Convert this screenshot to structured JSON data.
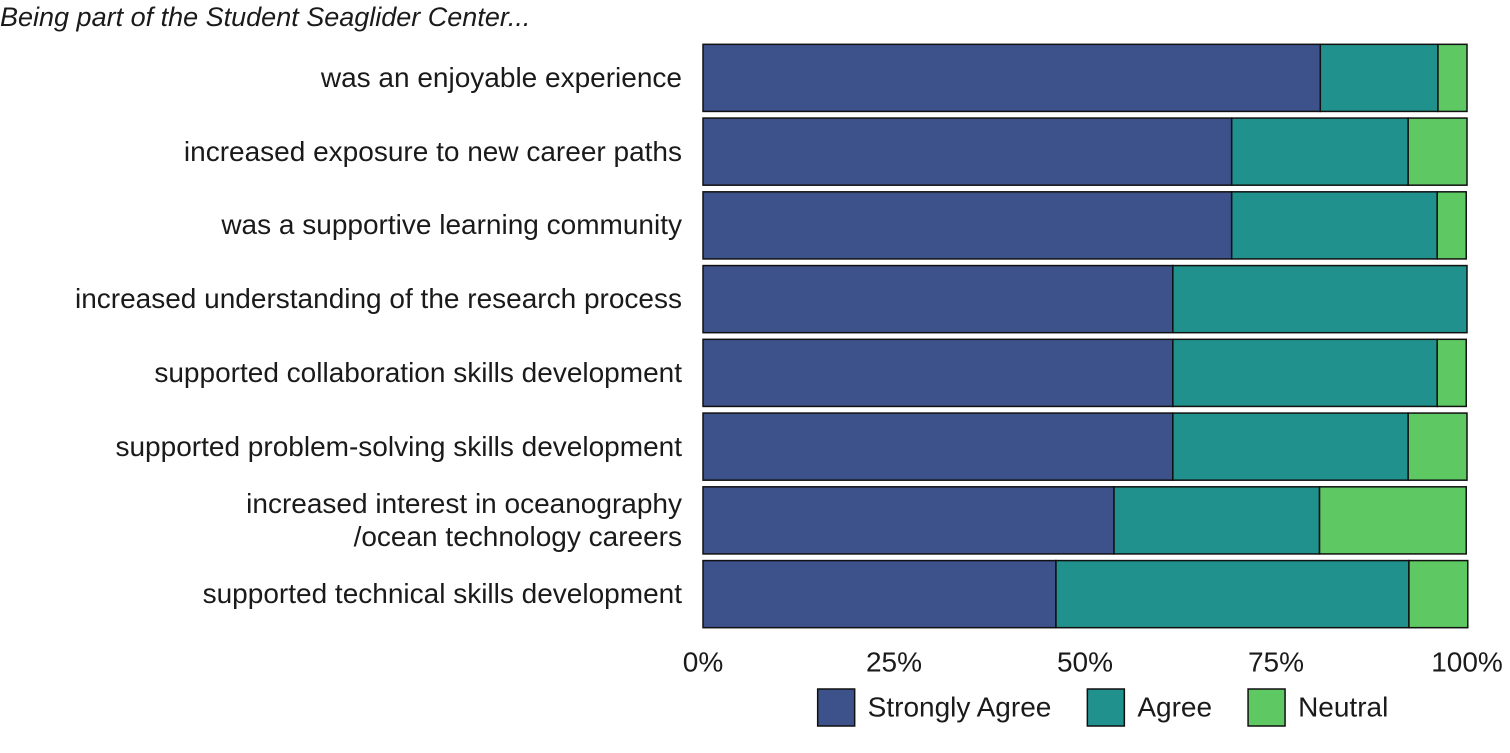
{
  "chart_data": {
    "type": "bar",
    "orientation": "horizontal",
    "stacked": true,
    "title": "Being part of the Student Seaglider Center...",
    "categories": [
      "was an enjoyable experience",
      "increased exposure to new career paths",
      "was a supportive learning community",
      "increased understanding of the research process",
      "supported collaboration skills development",
      "supported problem-solving skills development",
      "increased interest in oceanography\n/ocean technology careers",
      "supported technical skills development"
    ],
    "series": [
      {
        "name": "Strongly Agree",
        "color": "#3d528a",
        "values": [
          80.8,
          69.2,
          69.2,
          61.5,
          61.5,
          61.5,
          53.8,
          46.2
        ]
      },
      {
        "name": "Agree",
        "color": "#20918c",
        "values": [
          15.4,
          23.1,
          26.9,
          38.5,
          34.6,
          30.8,
          26.9,
          46.2
        ]
      },
      {
        "name": "Neutral",
        "color": "#5ec962",
        "values": [
          3.8,
          7.7,
          3.8,
          0,
          3.8,
          7.7,
          19.2,
          7.7
        ]
      }
    ],
    "xlim": [
      0,
      100
    ],
    "xticks": [
      {
        "value": 0,
        "label": "0%"
      },
      {
        "value": 25,
        "label": "25%"
      },
      {
        "value": 50,
        "label": "50%"
      },
      {
        "value": 75,
        "label": "75%"
      },
      {
        "value": 100,
        "label": "100%"
      }
    ],
    "legend": "bottom"
  }
}
